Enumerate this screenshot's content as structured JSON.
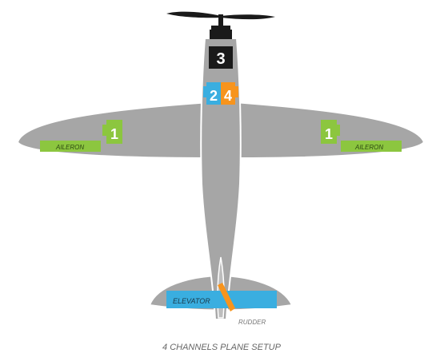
{
  "diagram": {
    "caption": "4 CHANNELS PLANE SETUP",
    "surfaces": {
      "aileron_left": "AILERON",
      "aileron_right": "AILERON",
      "elevator": "ELEVATOR",
      "rudder": "RUDDER"
    },
    "channels": {
      "aileron_left": "1",
      "aileron_right": "1",
      "throttle": "3",
      "elevator": "2",
      "rudder": "4"
    },
    "colors": {
      "airframe": "#a6a6a6",
      "outline": "#ffffff",
      "aileron": "#8cc63f",
      "elevator": "#3aaee0",
      "rudder": "#f7941d",
      "throttle": "#1a1a1a",
      "caption": "#666666"
    },
    "icons": [
      "propeller-icon",
      "servo-icon"
    ]
  }
}
